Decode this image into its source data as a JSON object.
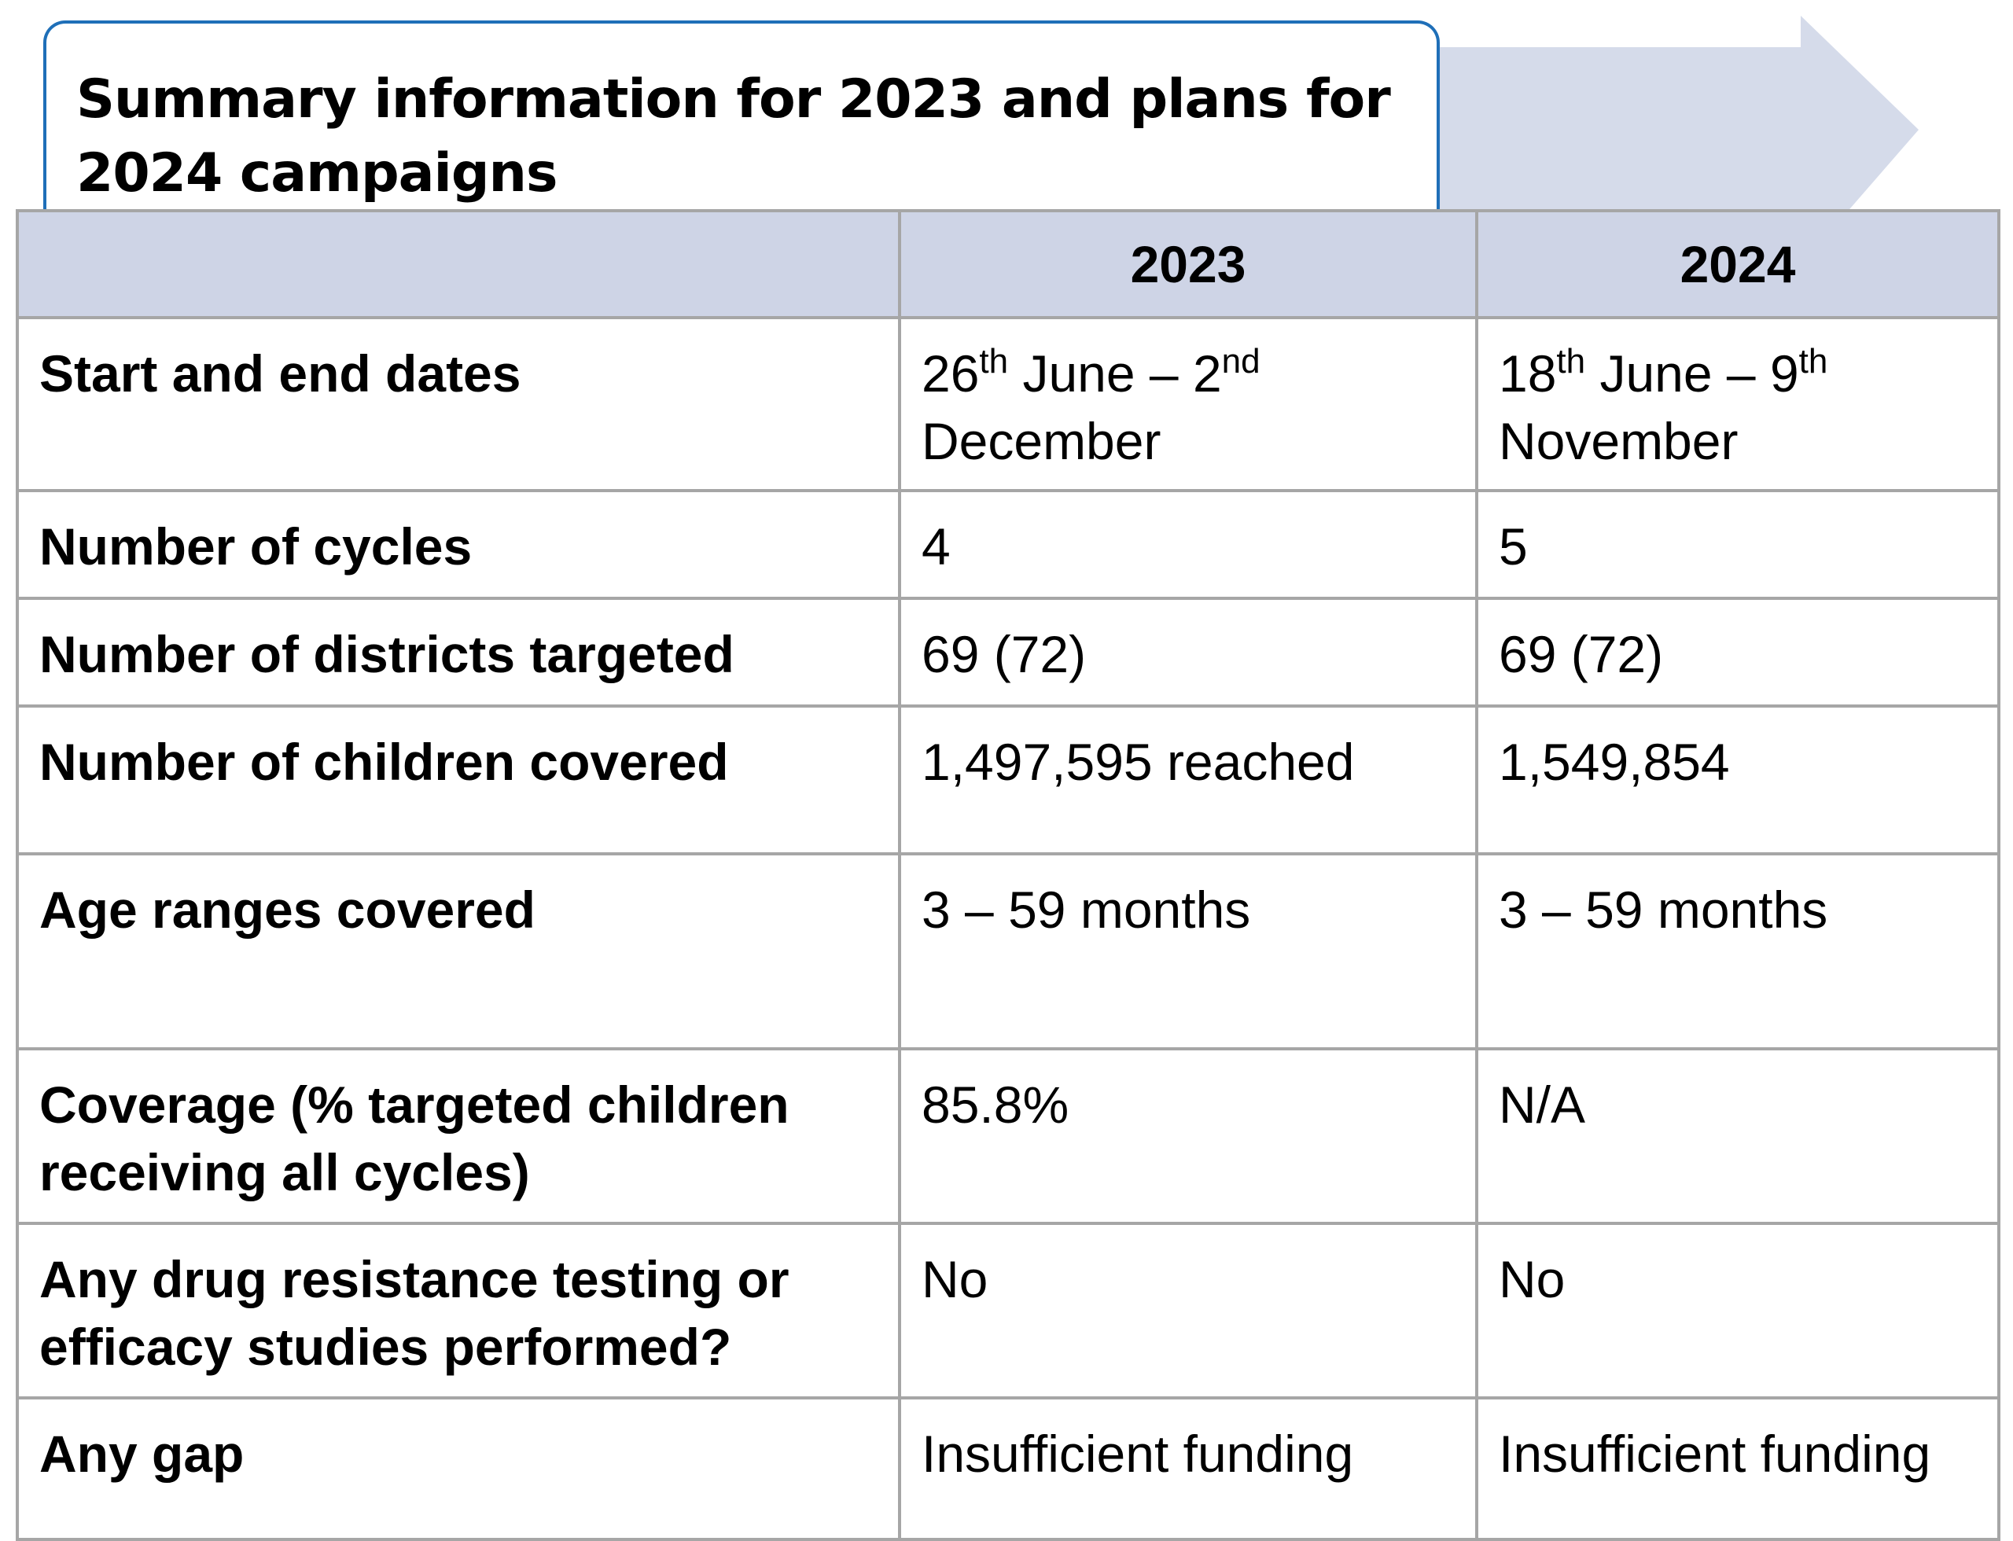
{
  "title": "Summary information for 2023 and plans for 2024 campaigns",
  "colors": {
    "title_border": "#1f6fb8",
    "header_bg": "#ced4e6",
    "arrow": "#d5dbea",
    "grid": "#a6a6a6"
  },
  "table": {
    "headers": [
      "",
      "2023",
      "2024"
    ],
    "rows": [
      {
        "label": "Start and end dates",
        "y2023": {
          "day1": "26",
          "sup1": "th",
          "mid": " June – 2",
          "sup2": "nd",
          "tail": "December"
        },
        "y2024": {
          "day1": "18",
          "sup1": "th",
          "mid": " June – 9",
          "sup2": "th",
          "tail": "November"
        }
      },
      {
        "label": "Number of cycles",
        "y2023": "4",
        "y2024": "5"
      },
      {
        "label": "Number of districts targeted",
        "y2023": "69 (72)",
        "y2024": "69 (72)"
      },
      {
        "label": "Number of children covered",
        "y2023": "1,497,595 reached",
        "y2024": "1,549,854"
      },
      {
        "label": "Age ranges covered",
        "y2023": "3 – 59 months",
        "y2024": "3 – 59 months"
      },
      {
        "label": "Coverage (% targeted children receiving all cycles)",
        "y2023": "85.8%",
        "y2024": "N/A"
      },
      {
        "label": "Any drug resistance testing or efficacy studies performed?",
        "y2023": "No",
        "y2024": "No"
      },
      {
        "label": "Any gap",
        "y2023": "Insufficient funding",
        "y2024": "Insufficient funding"
      }
    ]
  }
}
